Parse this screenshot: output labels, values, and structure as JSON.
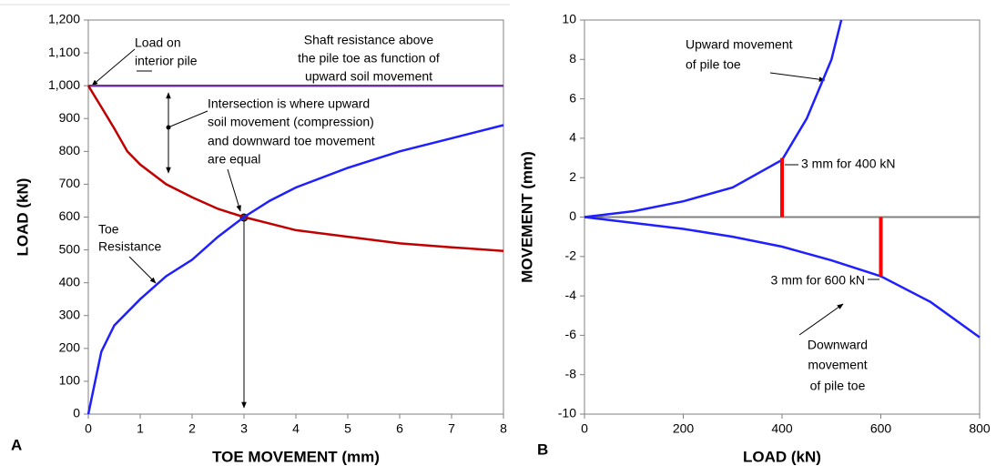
{
  "chart_data": [
    {
      "type": "line",
      "panel_label": "A",
      "xlabel": "TOE MOVEMENT (mm)",
      "ylabel": "LOAD (kN)",
      "xlim": [
        0,
        8
      ],
      "xticks": [
        0,
        1,
        2,
        3,
        4,
        5,
        6,
        7,
        8
      ],
      "ylim": [
        0,
        1200
      ],
      "yticks": [
        0,
        100,
        200,
        300,
        400,
        500,
        600,
        700,
        800,
        900,
        {
          "value": 1000,
          "label": "1,000"
        },
        {
          "value": 1100,
          "label": "1,100"
        },
        {
          "value": 1200,
          "label": "1,200"
        }
      ],
      "grid": false,
      "series": [
        {
          "color": "#7030a0",
          "x": [
            0,
            8
          ],
          "values": [
            1000,
            1000
          ]
        },
        {
          "color": "#c00000",
          "x": [
            0,
            0.25,
            0.5,
            0.75,
            1,
            1.5,
            2,
            2.5,
            3,
            3.5,
            4,
            5,
            6,
            7,
            8
          ],
          "values": [
            1000,
            935,
            870,
            800,
            760,
            700,
            660,
            625,
            600,
            580,
            560,
            540,
            520,
            508,
            497
          ]
        },
        {
          "color": "#1f1fff",
          "x": [
            0,
            0.25,
            0.5,
            1,
            1.5,
            2,
            2.5,
            3,
            3.5,
            4,
            5,
            6,
            7,
            8
          ],
          "values": [
            0,
            190,
            270,
            350,
            420,
            470,
            540,
            600,
            650,
            690,
            750,
            800,
            840,
            880
          ]
        }
      ],
      "annotations": [
        [
          "Load on",
          "interior pile"
        ],
        [
          "Shaft resistance above",
          "the pile toe as function of",
          "upward soil movement"
        ],
        [
          "Intersection is where upward",
          "soil movement (compression)",
          "and downward toe movement",
          "are equal"
        ],
        [
          "Toe",
          "Resistance"
        ]
      ]
    },
    {
      "type": "line",
      "panel_label": "B",
      "xlabel": "LOAD (kN)",
      "ylabel": "MOVEMENT (mm)",
      "xlim": [
        0,
        800
      ],
      "xticks": [
        0,
        200,
        400,
        600,
        800
      ],
      "ylim": [
        -10,
        10
      ],
      "yticks": [
        -10,
        -8,
        -6,
        -4,
        -2,
        0,
        2,
        4,
        6,
        8,
        10
      ],
      "grid": false,
      "series": [
        {
          "color": "#1f1fff",
          "x": [
            0,
            100,
            200,
            300,
            400,
            450,
            500,
            520
          ],
          "values": [
            0,
            0.3,
            0.8,
            1.5,
            2.9,
            5,
            8,
            10
          ]
        },
        {
          "color": "#1f1fff",
          "x": [
            0,
            100,
            200,
            300,
            400,
            500,
            600,
            700,
            800
          ],
          "values": [
            0,
            -0.3,
            -0.6,
            -1,
            -1.5,
            -2.2,
            -3,
            -4.3,
            -6.1
          ]
        }
      ],
      "markers": {
        "color": "#ff0000",
        "x": [
          400,
          600
        ],
        "values": [
          3,
          -3
        ]
      },
      "annotations": [
        [
          "Upward movement",
          "of pile toe"
        ],
        [
          "3 mm for 400  kN"
        ],
        [
          "3 mm for 600  kN"
        ],
        [
          "Downward",
          "movement",
          "of pile toe"
        ]
      ]
    }
  ]
}
